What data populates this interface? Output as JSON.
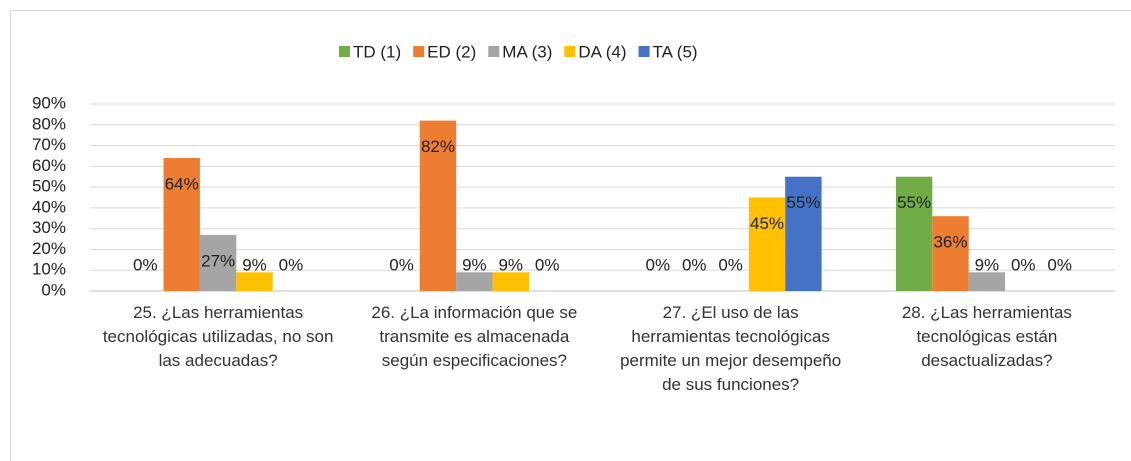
{
  "chart_data": {
    "type": "bar",
    "categories": [
      "25. ¿Las herramientas tecnológicas utilizadas, no son las adecuadas?",
      "26. ¿La información que se transmite es almacenada según especificaciones?",
      "27. ¿El uso de las herramientas tecnológicas permite un mejor desempeño de sus funciones?",
      "28. ¿Las herramientas tecnológicas están desactualizadas?"
    ],
    "series": [
      {
        "name": "TD (1)",
        "color": "#70ad47",
        "values": [
          0,
          0,
          0,
          55
        ],
        "value_labels": [
          "0%",
          "0%",
          "0%",
          "55%"
        ]
      },
      {
        "name": "ED (2)",
        "color": "#ed7d31",
        "values": [
          64,
          82,
          0,
          36
        ],
        "value_labels": [
          "64%",
          "82%",
          "0%",
          "36%"
        ]
      },
      {
        "name": "MA (3)",
        "color": "#a5a5a5",
        "values": [
          27,
          9,
          0,
          9
        ],
        "value_labels": [
          "27%",
          "9%",
          "0%",
          "9%"
        ]
      },
      {
        "name": "DA (4)",
        "color": "#ffc000",
        "values": [
          9,
          9,
          45,
          0
        ],
        "value_labels": [
          "9%",
          "9%",
          "45%",
          "0%"
        ]
      },
      {
        "name": "TA (5)",
        "color": "#4472c4",
        "values": [
          0,
          0,
          55,
          0
        ],
        "value_labels": [
          "0%",
          "0%",
          "55%",
          "0%"
        ]
      }
    ],
    "ylim": [
      0,
      90
    ],
    "yticks": [
      {
        "value": 0,
        "label": "0%"
      },
      {
        "value": 10,
        "label": "10%"
      },
      {
        "value": 20,
        "label": "20%"
      },
      {
        "value": 30,
        "label": "30%"
      },
      {
        "value": 40,
        "label": "40%"
      },
      {
        "value": 50,
        "label": "50%"
      },
      {
        "value": 60,
        "label": "60%"
      },
      {
        "value": 70,
        "label": "70%"
      },
      {
        "value": 80,
        "label": "80%"
      },
      {
        "value": 90,
        "label": "90%"
      }
    ],
    "grid": true,
    "legend": "top"
  }
}
